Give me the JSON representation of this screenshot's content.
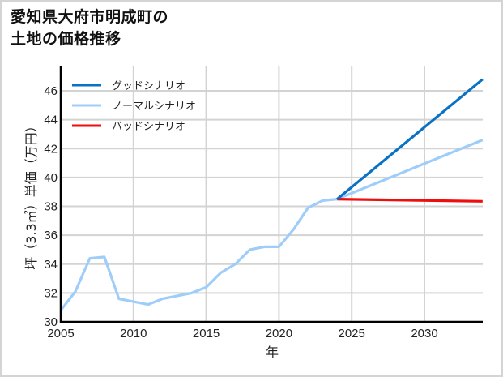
{
  "title": {
    "line1": "愛知県大府市明成町の",
    "line2": "土地の価格推移"
  },
  "colors": {
    "good": "#0a72c4",
    "normal": "#9fcdfa",
    "bad": "#ef0e0e",
    "grid": "#d3d3d3",
    "axis": "#000000"
  },
  "chart_data": {
    "type": "line",
    "title": "愛知県大府市明成町の土地の価格推移",
    "xlabel": "年",
    "ylabel": "坪（3.3㎡）単価（万円）",
    "xlim": [
      2005,
      2034
    ],
    "ylim": [
      30,
      47.6
    ],
    "x_ticks": [
      2005,
      2010,
      2015,
      2020,
      2025,
      2030
    ],
    "y_ticks": [
      30,
      32,
      34,
      36,
      38,
      40,
      42,
      44,
      46
    ],
    "grid": true,
    "legend_position": "upper left",
    "series": [
      {
        "name": "グッドシナリオ",
        "color": "#0a72c4",
        "x": [
          2024,
          2034
        ],
        "values": [
          38.5,
          46.8
        ]
      },
      {
        "name": "ノーマルシナリオ",
        "color": "#9fcdfa",
        "x": [
          2005,
          2006,
          2007,
          2008,
          2009,
          2010,
          2011,
          2012,
          2013,
          2014,
          2015,
          2016,
          2017,
          2018,
          2019,
          2020,
          2021,
          2022,
          2023,
          2024,
          2034
        ],
        "values": [
          30.8,
          32.1,
          34.4,
          34.5,
          31.6,
          31.4,
          31.2,
          31.6,
          31.8,
          32.0,
          32.4,
          33.4,
          34.0,
          35.0,
          35.2,
          35.2,
          36.4,
          37.9,
          38.4,
          38.5,
          42.6
        ]
      },
      {
        "name": "バッドシナリオ",
        "color": "#ef0e0e",
        "x": [
          2024,
          2034
        ],
        "values": [
          38.5,
          38.35
        ]
      }
    ]
  },
  "legend": [
    {
      "label": "グッドシナリオ",
      "key": "good"
    },
    {
      "label": "ノーマルシナリオ",
      "key": "normal"
    },
    {
      "label": "バッドシナリオ",
      "key": "bad"
    }
  ]
}
